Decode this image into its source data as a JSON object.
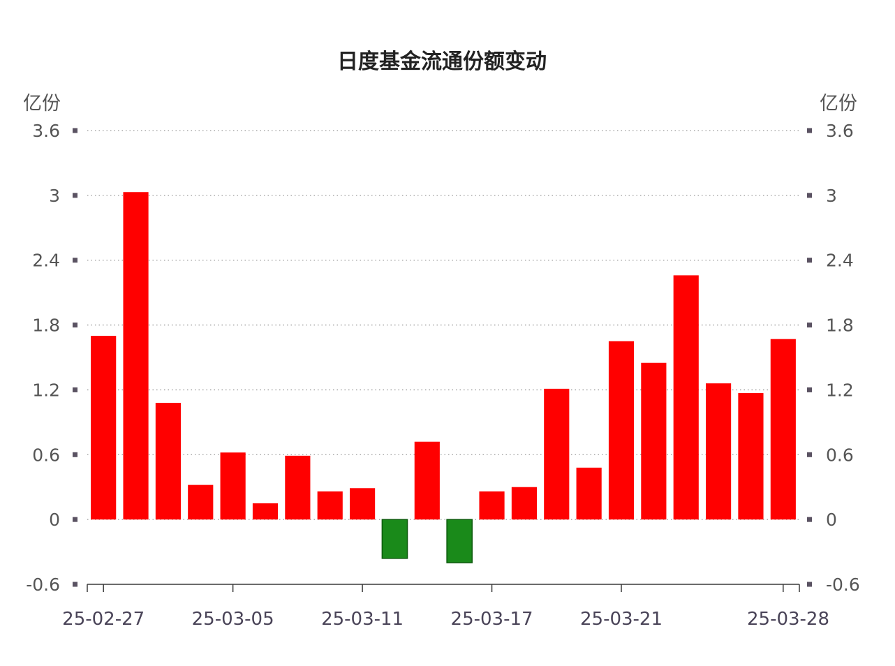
{
  "chart_data": {
    "type": "bar",
    "title": "日度基金流通份额变动",
    "ylabel_left": "亿份",
    "ylabel_right": "亿份",
    "ylim": [
      -0.6,
      3.6
    ],
    "yticks": [
      3.6,
      3,
      2.4,
      1.8,
      1.2,
      0.6,
      0,
      -0.6
    ],
    "ytick_labels": [
      "3.6",
      "3",
      "2.4",
      "1.8",
      "1.2",
      "0.6",
      "0",
      "-0.6"
    ],
    "xtick_labels": [
      {
        "index": 0,
        "label": "25-02-27"
      },
      {
        "index": 4,
        "label": "25-03-05"
      },
      {
        "index": 8,
        "label": "25-03-11"
      },
      {
        "index": 12,
        "label": "25-03-17"
      },
      {
        "index": 16,
        "label": "25-03-21"
      },
      {
        "index": 21,
        "label": "25-03-28"
      }
    ],
    "grid": true,
    "positive_color": "#ff0000",
    "negative_color": "#1a8a1a",
    "values": [
      1.7,
      3.03,
      1.08,
      0.32,
      0.62,
      0.15,
      0.59,
      0.26,
      0.29,
      -0.36,
      0.72,
      -0.4,
      0.26,
      0.3,
      1.21,
      0.48,
      1.65,
      1.45,
      2.26,
      1.26,
      1.17,
      1.67
    ]
  }
}
